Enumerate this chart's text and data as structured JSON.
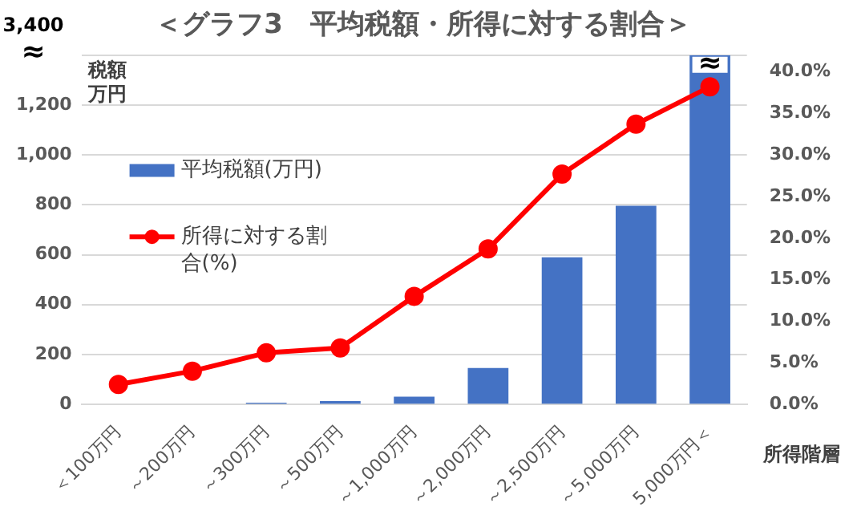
{
  "chart_data": {
    "type": "bar",
    "title": "＜グラフ3　平均税額・所得に対する割合＞",
    "ylabel": "税額万円",
    "xlabel": "所得階層",
    "categories": [
      "＜100万円",
      "～200万円",
      "～300万円",
      "～500万円",
      "～1,000万円",
      "～2,000万円",
      "～2,500万円",
      "～5,000万円",
      "5,000万円＜"
    ],
    "series": [
      {
        "name": "平均税額(万円)",
        "color": "#4472c4",
        "values": [
          0,
          0,
          7,
          13,
          31,
          146,
          590,
          796,
          1400
        ]
      },
      {
        "name": "所得に対する割合(%)",
        "type": "line",
        "axis": "y2",
        "color": "#ff0000",
        "marker": "circle",
        "values": [
          2.4,
          4.0,
          6.2,
          6.8,
          13.0,
          18.7,
          27.7,
          33.7,
          38.2
        ]
      }
    ],
    "ylim": [
      0,
      1400
    ],
    "yticks": [
      0,
      200,
      400,
      600,
      800,
      {
        "value": 1000,
        "label": "1,000"
      },
      {
        "value": 1200,
        "label": "1,200"
      },
      {
        "value": 1400,
        "label": null
      }
    ],
    "y2lim": [
      0,
      42
    ],
    "y2ticks": [
      {
        "value": 0,
        "label": "0.0%"
      },
      {
        "value": 5,
        "label": "5.0%"
      },
      {
        "value": 10,
        "label": "10.0%"
      },
      {
        "value": 15,
        "label": "15.0%"
      },
      {
        "value": 20,
        "label": "20.0%"
      },
      {
        "value": 25,
        "label": "25.0%"
      },
      {
        "value": 30,
        "label": "30.0%"
      },
      {
        "value": 35,
        "label": "35.0%"
      },
      {
        "value": 40,
        "label": "40.0%"
      }
    ],
    "annotations": [
      "3,400",
      "≈",
      {
        "text": "≈",
        "x": "5,000万円＜",
        "y": 1400
      }
    ],
    "grid": "y",
    "legend": "left"
  }
}
